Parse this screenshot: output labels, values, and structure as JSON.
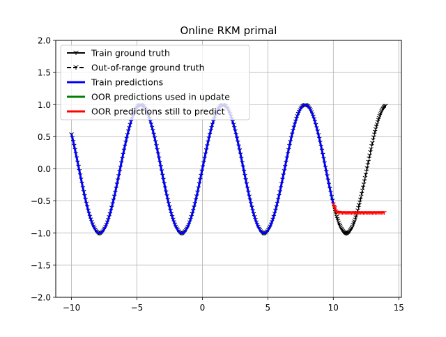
{
  "chart_data": {
    "type": "line",
    "title": "Online RKM primal",
    "xlabel": "",
    "ylabel": "",
    "xlim": [
      -11.2,
      15.2
    ],
    "ylim": [
      -2.0,
      2.0
    ],
    "xticks": [
      -10,
      -5,
      0,
      5,
      10,
      15
    ],
    "yticks": [
      -2.0,
      -1.5,
      -1.0,
      -0.5,
      0.0,
      0.5,
      1.0,
      1.5,
      2.0
    ],
    "xtick_labels": [
      "−10",
      "−5",
      "0",
      "5",
      "10",
      "15"
    ],
    "ytick_labels": [
      "−2.0",
      "−1.5",
      "−1.0",
      "−0.5",
      "0.0",
      "0.5",
      "1.0",
      "1.5",
      "2.0"
    ],
    "grid": true,
    "legend_position": "upper-left",
    "series": [
      {
        "name": "Train ground truth",
        "color": "#000000",
        "style": "solid",
        "marker": "tri-down",
        "function": "sin(x)",
        "x_range": [
          -10,
          10
        ],
        "points": 300
      },
      {
        "name": "Out-of-range ground truth",
        "color": "#000000",
        "style": "dashed",
        "marker": "tri-down",
        "function": "sin(x)",
        "x_range": [
          10,
          14
        ],
        "points": 80
      },
      {
        "name": "Train predictions",
        "color": "#0000ff",
        "style": "solid",
        "function": "sin(x)",
        "x_range": [
          -10,
          10
        ],
        "points": 300
      },
      {
        "name": "OOR predictions used in update",
        "color": "#008000",
        "style": "solid",
        "x": [],
        "y": []
      },
      {
        "name": "OOR predictions still to predict",
        "color": "#ff0000",
        "style": "solid",
        "marker": "tri-down",
        "x": [
          10.0,
          10.05,
          10.1,
          10.15,
          10.2,
          10.3,
          10.4,
          10.6,
          11.0,
          12.0,
          13.0,
          13.9
        ],
        "y": [
          -0.544,
          -0.57,
          -0.6,
          -0.63,
          -0.655,
          -0.67,
          -0.675,
          -0.678,
          -0.68,
          -0.68,
          -0.68,
          -0.678
        ]
      }
    ]
  }
}
